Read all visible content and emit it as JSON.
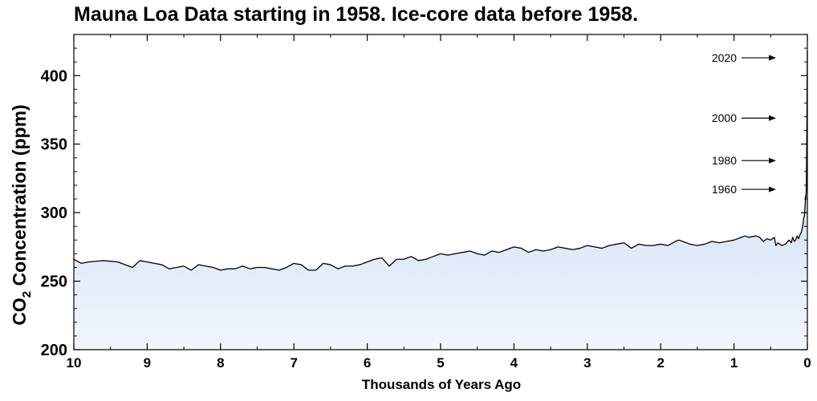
{
  "chart_data": {
    "type": "area",
    "title": "Mauna Loa Data starting in 1958. Ice-core data before 1958.",
    "xlabel": "Thousands of Years Ago",
    "ylabel_main": "CO",
    "ylabel_sub": "2",
    "ylabel_rest": " Concentration (ppm)",
    "xlim": [
      10,
      0
    ],
    "ylim": [
      200,
      430
    ],
    "x_ticks": [
      10,
      9,
      8,
      7,
      6,
      5,
      4,
      3,
      2,
      1,
      0
    ],
    "y_ticks": [
      200,
      250,
      300,
      350,
      400
    ],
    "fill_color_top": "#b9d0f0",
    "fill_color_bottom": "#f2f6fd",
    "line_color": "#000000",
    "x": [
      10.0,
      9.9,
      9.8,
      9.6,
      9.4,
      9.2,
      9.1,
      9.0,
      8.9,
      8.8,
      8.7,
      8.6,
      8.5,
      8.4,
      8.3,
      8.2,
      8.1,
      8.0,
      7.9,
      7.8,
      7.7,
      7.6,
      7.5,
      7.4,
      7.3,
      7.2,
      7.1,
      7.0,
      6.9,
      6.8,
      6.7,
      6.6,
      6.5,
      6.4,
      6.3,
      6.2,
      6.1,
      6.0,
      5.9,
      5.8,
      5.7,
      5.6,
      5.5,
      5.4,
      5.3,
      5.2,
      5.1,
      5.0,
      4.9,
      4.8,
      4.7,
      4.6,
      4.5,
      4.4,
      4.3,
      4.2,
      4.1,
      4.0,
      3.9,
      3.8,
      3.7,
      3.6,
      3.5,
      3.4,
      3.3,
      3.2,
      3.1,
      3.0,
      2.9,
      2.8,
      2.7,
      2.6,
      2.5,
      2.4,
      2.3,
      2.2,
      2.1,
      2.0,
      1.9,
      1.8,
      1.75,
      1.7,
      1.6,
      1.5,
      1.4,
      1.3,
      1.2,
      1.1,
      1.0,
      0.9,
      0.85,
      0.8,
      0.7,
      0.65,
      0.6,
      0.55,
      0.5,
      0.45,
      0.43,
      0.4,
      0.35,
      0.3,
      0.25,
      0.22,
      0.2,
      0.18,
      0.16,
      0.14,
      0.12,
      0.1,
      0.08,
      0.07,
      0.06,
      0.05,
      0.04,
      0.03,
      0.025,
      0.02,
      0.015,
      0.01,
      0.006,
      0.003,
      0.0
    ],
    "y": [
      266,
      263,
      264,
      265,
      264,
      260,
      265,
      264,
      263,
      262,
      259,
      260,
      261,
      258,
      262,
      261,
      260,
      258,
      259,
      259,
      261,
      259,
      260,
      260,
      259,
      258,
      260,
      263,
      262,
      258,
      258,
      263,
      262,
      259,
      261,
      261,
      262,
      264,
      266,
      267,
      261,
      266,
      266,
      268,
      265,
      266,
      268,
      270,
      269,
      270,
      271,
      272,
      270,
      269,
      272,
      271,
      273,
      275,
      274,
      271,
      273,
      272,
      273,
      275,
      274,
      273,
      274,
      276,
      275,
      274,
      276,
      277,
      278,
      274,
      277,
      276,
      276,
      277,
      276,
      279,
      280,
      279,
      277,
      276,
      277,
      279,
      278,
      279,
      280,
      282,
      283,
      282,
      283,
      282,
      279,
      281,
      280,
      282,
      276,
      278,
      276,
      277,
      280,
      278,
      282,
      279,
      280,
      283,
      281,
      284,
      286,
      289,
      291,
      296,
      298,
      306,
      312,
      311,
      316,
      340,
      370,
      398,
      418
    ]
  },
  "annotations": [
    {
      "label": "2020",
      "value": 413
    },
    {
      "label": "2000",
      "value": 369
    },
    {
      "label": "1980",
      "value": 338
    },
    {
      "label": "1960",
      "value": 317
    }
  ]
}
